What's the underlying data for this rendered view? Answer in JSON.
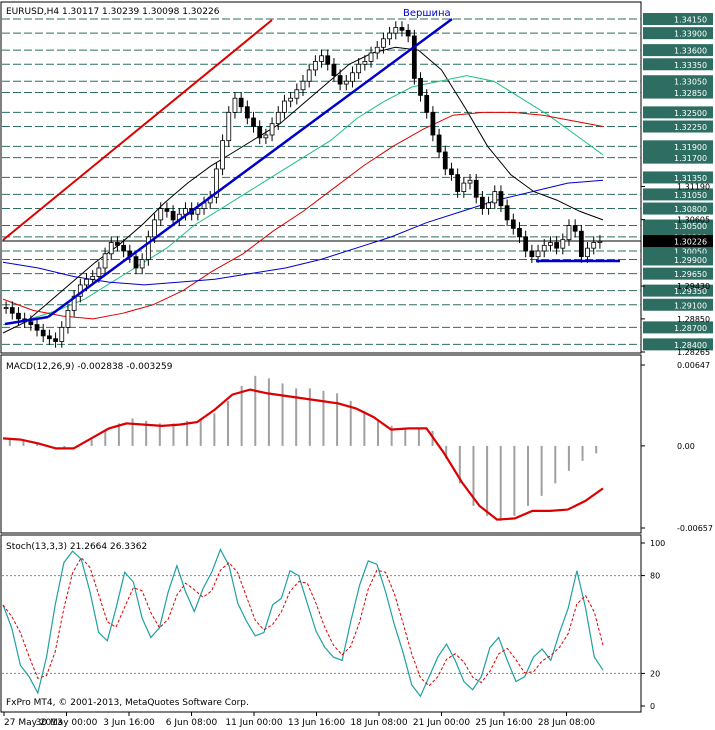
{
  "window": {
    "symbol_line": "EURUSD,H4  1.30117 1.30239 1.30098 1.30226",
    "peak_label": "Вершина",
    "copyright": "FxPro MT4, © 2001-2013, MetaQuotes Software Corp."
  },
  "price_panel": {
    "levels": [
      "1.34150",
      "1.33900",
      "1.33600",
      "1.33350",
      "1.33050",
      "1.32850",
      "1.32500",
      "1.32250",
      "1.31900",
      "1.31700",
      "1.31350",
      "1.31050",
      "1.30800",
      "1.30500",
      "1.30300",
      "1.30050",
      "1.29900",
      "1.29650",
      "1.29350",
      "1.29100",
      "1.28700",
      "1.28400"
    ],
    "extra_ticks": [
      "1.31190",
      "1.30605",
      "1.29430",
      "1.28850",
      "1.28265"
    ],
    "current_price": "1.30226",
    "colors": {
      "level_line": "#2e6e62",
      "level_box": "#2e6e62",
      "current_line": "#000000",
      "up_trend": "#0000cc",
      "channel": "#dd0000",
      "support": "#0000cc"
    }
  },
  "macd_panel": {
    "label": "MACD(12,26,9) -0.002838 -0.003259",
    "ticks": [
      "0.00647",
      "0.00",
      "-0.00657"
    ],
    "colors": {
      "histogram": "#a0a0a0",
      "signal": "#dd0000"
    }
  },
  "stoch_panel": {
    "label": "Stoch(13,3,3) 21.2664 26.3362",
    "ticks": [
      "100",
      "80",
      "20",
      "0"
    ],
    "colors": {
      "main": "#20a0a0",
      "signal": "#dd0000"
    }
  },
  "time_axis": [
    "27 May 2013",
    "30 May 00:00",
    "3 Jun 16:00",
    "6 Jun 08:00",
    "11 Jun 00:00",
    "13 Jun 16:00",
    "18 Jun 08:00",
    "21 Jun 00:00",
    "25 Jun 16:00",
    "28 Jun 08:00"
  ],
  "chart_data": [
    {
      "type": "candlestick",
      "title": "EURUSD,H4",
      "ylim": [
        1.28265,
        1.3415
      ],
      "close": [
        1.2905,
        1.2895,
        1.2885,
        1.288,
        1.2875,
        1.2865,
        1.2855,
        1.285,
        1.2845,
        1.287,
        1.29,
        1.2925,
        1.2945,
        1.2955,
        1.296,
        1.2975,
        1.3,
        1.302,
        1.3015,
        1.3005,
        1.2995,
        1.2975,
        1.299,
        1.303,
        1.306,
        1.308,
        1.3075,
        1.306,
        1.307,
        1.308,
        1.307,
        1.308,
        1.309,
        1.31,
        1.315,
        1.32,
        1.325,
        1.3275,
        1.326,
        1.324,
        1.3225,
        1.3205,
        1.321,
        1.323,
        1.325,
        1.327,
        1.3275,
        1.329,
        1.3305,
        1.3325,
        1.334,
        1.335,
        1.3335,
        1.3315,
        1.33,
        1.3305,
        1.332,
        1.3335,
        1.334,
        1.3355,
        1.3365,
        1.338,
        1.339,
        1.34,
        1.3395,
        1.3385,
        1.331,
        1.328,
        1.325,
        1.321,
        1.318,
        1.315,
        1.314,
        1.311,
        1.3125,
        1.313,
        1.31,
        1.308,
        1.309,
        1.311,
        1.3085,
        1.306,
        1.3045,
        1.303,
        1.3005,
        1.2995,
        1.3005,
        1.3015,
        1.302,
        1.301,
        1.3025,
        1.305,
        1.304,
        1.2995,
        1.301,
        1.302,
        1.3022
      ],
      "moving_averages": [
        {
          "color": "#000000",
          "values": [
            1.286,
            1.288,
            1.2915,
            1.295,
            1.2985,
            1.3015,
            1.305,
            1.309,
            1.3125,
            1.3155,
            1.318,
            1.3205,
            1.323,
            1.3265,
            1.33,
            1.3335,
            1.3355,
            1.3365,
            1.336,
            1.3325,
            1.326,
            1.319,
            1.314,
            1.311,
            1.3095,
            1.3075,
            1.306
          ]
        },
        {
          "color": "#20c080",
          "values": [
            1.2875,
            1.2885,
            1.29,
            1.292,
            1.295,
            1.298,
            1.301,
            1.305,
            1.308,
            1.311,
            1.314,
            1.317,
            1.32,
            1.324,
            1.327,
            1.3295,
            1.3305,
            1.3315,
            1.3305,
            1.3275,
            1.3245,
            1.321,
            1.3175
          ]
        },
        {
          "color": "#dd0000",
          "values": [
            1.292,
            1.29,
            1.289,
            1.2885,
            1.2895,
            1.291,
            1.2935,
            1.297,
            1.3,
            1.304,
            1.3075,
            1.3115,
            1.3155,
            1.319,
            1.322,
            1.3245,
            1.325,
            1.325,
            1.3245,
            1.3235,
            1.3225
          ]
        },
        {
          "color": "#0000cc",
          "values": [
            1.2985,
            1.2975,
            1.296,
            1.295,
            1.2945,
            1.295,
            1.2955,
            1.2965,
            1.2975,
            1.299,
            1.301,
            1.303,
            1.3055,
            1.3075,
            1.3095,
            1.311,
            1.3125,
            1.313
          ]
        }
      ]
    },
    {
      "type": "bar",
      "title": "MACD(12,26,9)",
      "ylim": [
        -0.00657,
        0.00647
      ],
      "histogram": [
        0.0005,
        0.0004,
        0.0002,
        0.0,
        -0.0002,
        -0.0001,
        0.0005,
        0.0012,
        0.0018,
        0.0022,
        0.002,
        0.0018,
        0.0018,
        0.002,
        0.0022,
        0.0026,
        0.0036,
        0.0048,
        0.0056,
        0.0054,
        0.005,
        0.0046,
        0.0046,
        0.0044,
        0.0042,
        0.0036,
        0.0028,
        0.002,
        0.0016,
        0.0014,
        0.0014,
        0.0012,
        -0.001,
        -0.003,
        -0.0048,
        -0.0056,
        -0.006,
        -0.0056,
        -0.0048,
        -0.004,
        -0.003,
        -0.002,
        -0.0012,
        -0.0006
      ],
      "signal": [
        0.0006,
        0.0005,
        0.0002,
        -0.0002,
        -0.0002,
        0.0006,
        0.0014,
        0.0018,
        0.0017,
        0.0016,
        0.0017,
        0.0019,
        0.0029,
        0.0041,
        0.0045,
        0.0042,
        0.004,
        0.0038,
        0.0036,
        0.0034,
        0.003,
        0.0023,
        0.0013,
        0.0014,
        0.0014,
        -0.0006,
        -0.0029,
        -0.0048,
        -0.0059,
        -0.0058,
        -0.0052,
        -0.0052,
        -0.0051,
        -0.0044,
        -0.0034
      ]
    },
    {
      "type": "line",
      "title": "Stoch(13,3,3)",
      "ylim": [
        0,
        100
      ],
      "main": [
        62,
        48,
        25,
        18,
        8,
        30,
        62,
        88,
        95,
        90,
        70,
        45,
        40,
        60,
        82,
        76,
        54,
        42,
        48,
        70,
        86,
        70,
        58,
        72,
        82,
        96,
        86,
        63,
        52,
        43,
        45,
        62,
        66,
        83,
        80,
        63,
        46,
        36,
        30,
        28,
        52,
        74,
        89,
        87,
        70,
        50,
        33,
        13,
        6,
        18,
        30,
        38,
        28,
        15,
        10,
        18,
        36,
        42,
        28,
        15,
        18,
        30,
        35,
        28,
        45,
        60,
        83,
        60,
        30,
        22
      ]
    }
  ]
}
